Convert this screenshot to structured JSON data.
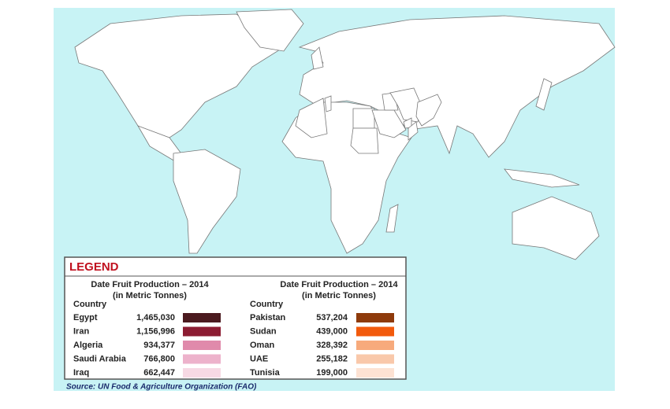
{
  "legend": {
    "title": "LEGEND",
    "columns": [
      {
        "heading": "Date Fruit Production – 2014",
        "subheading": "(in Metric Tonnes)",
        "country_label": "Country",
        "rows": [
          {
            "country": "Egypt",
            "production": "1,465,030",
            "color": "#4b1a1f"
          },
          {
            "country": "Iran",
            "production": "1,156,996",
            "color": "#8c1c32"
          },
          {
            "country": "Algeria",
            "production": "934,377",
            "color": "#e08aab"
          },
          {
            "country": "Saudi Arabia",
            "production": "766,800",
            "color": "#edb2cb"
          },
          {
            "country": "Iraq",
            "production": "662,447",
            "color": "#f7d9e4"
          }
        ]
      },
      {
        "heading": "Date Fruit Production – 2014",
        "subheading": "(in Metric Tonnes)",
        "country_label": "Country",
        "rows": [
          {
            "country": "Pakistan",
            "production": "537,204",
            "color": "#8e3a0b"
          },
          {
            "country": "Sudan",
            "production": "439,000",
            "color": "#f25a0c"
          },
          {
            "country": "Oman",
            "production": "328,392",
            "color": "#f7aa7c"
          },
          {
            "country": "UAE",
            "production": "255,182",
            "color": "#f9c8aa"
          },
          {
            "country": "Tunisia",
            "production": "199,000",
            "color": "#fde2d3"
          }
        ]
      }
    ]
  },
  "source": "Source: UN Food & Agriculture Organization (FAO)"
}
